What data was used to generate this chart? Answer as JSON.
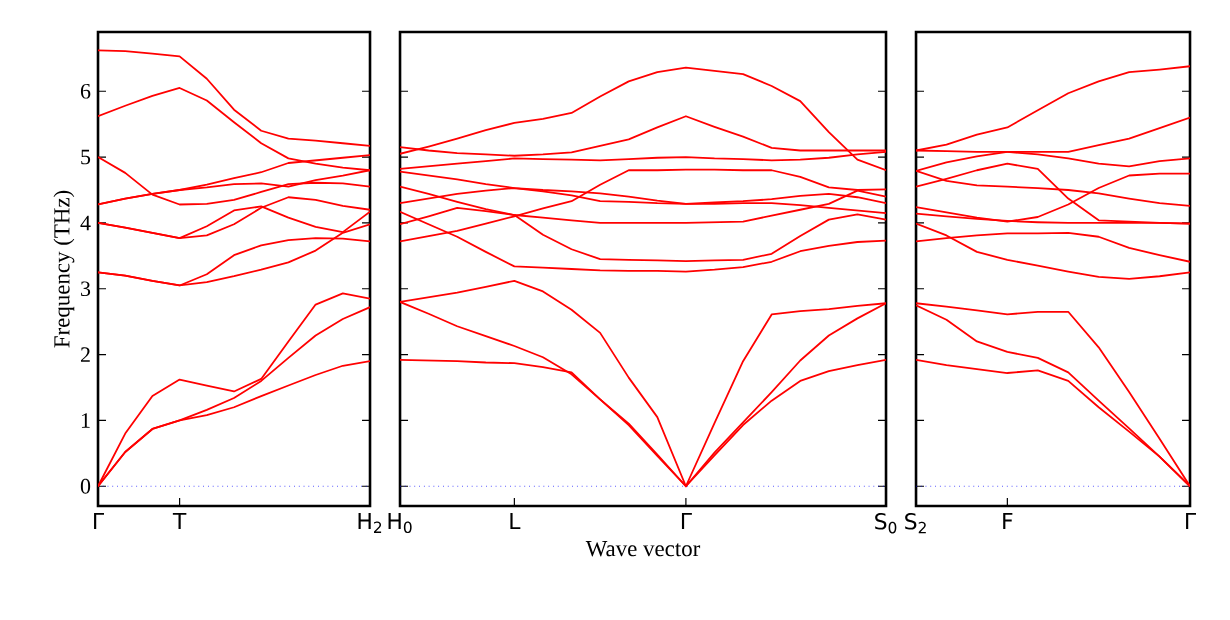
{
  "chart_data": [
    {
      "type": "line",
      "ylabel": "Frequency (THz)",
      "ylim": [
        -0.3,
        6.9
      ],
      "yticks": [
        0,
        1,
        2,
        3,
        4,
        5,
        6
      ],
      "categories": [
        "Γ",
        null,
        null,
        "T",
        null,
        null,
        null,
        null,
        null,
        null,
        "H$_{2}$"
      ],
      "ref_lines": [
        {
          "axis": "y",
          "value": 0,
          "color": "#0000ff",
          "line_style": "dotted"
        }
      ],
      "series": [
        {
          "color": "#ff0000",
          "values": [
            0,
            0.52,
            0.87,
            1.0,
            1.08,
            1.2,
            1.37,
            1.53,
            1.69,
            1.83,
            1.9
          ]
        },
        {
          "color": "#ff0000",
          "values": [
            0,
            0.52,
            0.87,
            1.0,
            1.16,
            1.34,
            1.6,
            1.95,
            2.29,
            2.54,
            2.72
          ]
        },
        {
          "color": "#ff0000",
          "values": [
            0,
            0.8,
            1.37,
            1.62,
            1.53,
            1.44,
            1.63,
            2.2,
            2.76,
            2.93,
            2.85
          ]
        },
        {
          "color": "#ff0000",
          "values": [
            3.25,
            3.2,
            3.12,
            3.05,
            3.1,
            3.19,
            3.29,
            3.4,
            3.58,
            3.85,
            3.98
          ]
        },
        {
          "color": "#ff0000",
          "values": [
            3.25,
            3.2,
            3.12,
            3.05,
            3.22,
            3.51,
            3.66,
            3.74,
            3.77,
            3.76,
            3.72
          ]
        },
        {
          "color": "#ff0000",
          "values": [
            4.0,
            3.93,
            3.85,
            3.77,
            3.95,
            4.19,
            4.25,
            4.08,
            3.94,
            3.86,
            4.17
          ]
        },
        {
          "color": "#ff0000",
          "values": [
            4.0,
            3.93,
            3.85,
            3.77,
            3.81,
            3.98,
            4.23,
            4.39,
            4.35,
            4.26,
            4.2
          ]
        },
        {
          "color": "#ff0000",
          "values": [
            4.28,
            4.37,
            4.44,
            4.5,
            4.54,
            4.59,
            4.6,
            4.55,
            4.65,
            4.72,
            4.8
          ]
        },
        {
          "color": "#ff0000",
          "values": [
            4.28,
            4.37,
            4.44,
            4.5,
            4.58,
            4.68,
            4.77,
            4.91,
            4.95,
            4.99,
            5.03
          ]
        },
        {
          "color": "#ff0000",
          "values": [
            5.0,
            4.76,
            4.43,
            4.28,
            4.29,
            4.35,
            4.47,
            4.59,
            4.61,
            4.6,
            4.55
          ]
        },
        {
          "color": "#ff0000",
          "values": [
            5.62,
            5.78,
            5.93,
            6.05,
            5.86,
            5.53,
            5.21,
            4.98,
            4.9,
            4.84,
            4.8
          ]
        },
        {
          "color": "#ff0000",
          "values": [
            6.62,
            6.61,
            6.57,
            6.53,
            6.19,
            5.72,
            5.4,
            5.28,
            5.25,
            5.21,
            5.17
          ]
        }
      ]
    },
    {
      "type": "line",
      "xlabel": "Wave vector",
      "ylim": [
        -0.3,
        6.9
      ],
      "yticks": [
        0,
        1,
        2,
        3,
        4,
        5,
        6
      ],
      "tick_labels": "x",
      "categories": [
        "H$_{0}$",
        null,
        null,
        null,
        "L",
        null,
        null,
        null,
        null,
        null,
        "Γ",
        null,
        null,
        null,
        null,
        null,
        null,
        "S$_{0}$"
      ],
      "ref_lines": [
        {
          "axis": "y",
          "value": 0,
          "color": "#0000ff",
          "line_style": "dotted"
        }
      ],
      "series": [
        {
          "color": "#ff0000",
          "values": [
            1.92,
            1.91,
            1.9,
            1.88,
            1.87,
            1.81,
            1.73,
            1.32,
            0.93,
            0.46,
            0,
            0.47,
            0.93,
            1.3,
            1.6,
            1.75,
            1.84,
            1.92
          ]
        },
        {
          "color": "#ff0000",
          "values": [
            2.8,
            2.62,
            2.43,
            2.28,
            2.13,
            1.96,
            1.7,
            1.32,
            0.95,
            0.48,
            0,
            0.51,
            0.97,
            1.43,
            1.91,
            2.29,
            2.55,
            2.78
          ]
        },
        {
          "color": "#ff0000",
          "values": [
            2.8,
            2.87,
            2.94,
            3.03,
            3.12,
            2.96,
            2.68,
            2.33,
            1.65,
            1.05,
            0,
            0.96,
            1.9,
            2.61,
            2.66,
            2.69,
            2.74,
            2.78
          ]
        },
        {
          "color": "#ff0000",
          "values": [
            4.17,
            3.98,
            3.79,
            3.56,
            3.34,
            3.32,
            3.3,
            3.28,
            3.27,
            3.27,
            3.26,
            3.29,
            3.33,
            3.41,
            3.57,
            3.65,
            3.71,
            3.73
          ]
        },
        {
          "color": "#ff0000",
          "values": [
            3.72,
            3.8,
            3.88,
            3.99,
            4.1,
            4.22,
            4.33,
            4.58,
            4.8,
            4.8,
            4.81,
            4.81,
            4.8,
            4.8,
            4.7,
            4.54,
            4.5,
            4.51
          ]
        },
        {
          "color": "#ff0000",
          "values": [
            4.3,
            4.37,
            4.44,
            4.49,
            4.53,
            4.48,
            4.42,
            4.33,
            4.32,
            4.3,
            4.29,
            4.29,
            4.3,
            4.3,
            4.27,
            4.23,
            4.19,
            4.15
          ]
        },
        {
          "color": "#ff0000",
          "values": [
            3.98,
            4.1,
            4.23,
            4.18,
            4.12,
            4.08,
            4.04,
            4.0,
            4.0,
            4.0,
            4.0,
            4.01,
            4.02,
            4.11,
            4.2,
            4.29,
            4.49,
            4.4
          ]
        },
        {
          "color": "#ff0000",
          "values": [
            4.55,
            4.44,
            4.32,
            4.21,
            4.12,
            3.82,
            3.6,
            3.45,
            3.44,
            3.43,
            3.42,
            3.43,
            3.44,
            3.53,
            3.8,
            4.05,
            4.13,
            4.05
          ]
        },
        {
          "color": "#ff0000",
          "values": [
            4.78,
            4.72,
            4.66,
            4.59,
            4.53,
            4.5,
            4.48,
            4.45,
            4.4,
            4.34,
            4.29,
            4.31,
            4.33,
            4.36,
            4.41,
            4.44,
            4.39,
            4.3
          ]
        },
        {
          "color": "#ff0000",
          "values": [
            4.82,
            4.86,
            4.9,
            4.94,
            4.98,
            4.97,
            4.96,
            4.95,
            4.97,
            4.99,
            5.0,
            4.98,
            4.97,
            4.95,
            4.96,
            4.99,
            5.04,
            5.08
          ]
        },
        {
          "color": "#ff0000",
          "values": [
            5.15,
            5.1,
            5.06,
            5.04,
            5.02,
            5.04,
            5.07,
            5.17,
            5.27,
            5.45,
            5.62,
            5.46,
            5.31,
            5.14,
            5.1,
            5.1,
            5.1,
            5.1
          ]
        },
        {
          "color": "#ff0000",
          "values": [
            5.05,
            5.16,
            5.28,
            5.41,
            5.52,
            5.58,
            5.67,
            5.92,
            6.15,
            6.29,
            6.36,
            6.31,
            6.26,
            6.08,
            5.85,
            5.38,
            4.96,
            4.8
          ]
        }
      ]
    },
    {
      "type": "line",
      "ylim": [
        -0.3,
        6.9
      ],
      "yticks": [
        0,
        1,
        2,
        3,
        4,
        5,
        6
      ],
      "tick_labels": "x",
      "categories": [
        "S$_{2}$",
        null,
        null,
        "F",
        null,
        null,
        null,
        null,
        null,
        "Γ"
      ],
      "ref_lines": [
        {
          "axis": "y",
          "value": 0,
          "color": "#0000ff",
          "line_style": "dotted"
        }
      ],
      "series": [
        {
          "color": "#ff0000",
          "values": [
            1.92,
            1.84,
            1.78,
            1.72,
            1.76,
            1.6,
            1.2,
            0.83,
            0.45,
            0
          ]
        },
        {
          "color": "#ff0000",
          "values": [
            2.75,
            2.53,
            2.2,
            2.04,
            1.95,
            1.73,
            1.3,
            0.88,
            0.45,
            0
          ]
        },
        {
          "color": "#ff0000",
          "values": [
            2.78,
            2.73,
            2.67,
            2.61,
            2.65,
            2.65,
            2.11,
            1.43,
            0.72,
            0
          ]
        },
        {
          "color": "#ff0000",
          "values": [
            3.72,
            3.77,
            3.81,
            3.84,
            3.84,
            3.85,
            3.79,
            3.62,
            3.51,
            3.41
          ]
        },
        {
          "color": "#ff0000",
          "values": [
            3.99,
            3.81,
            3.56,
            3.44,
            3.35,
            3.26,
            3.18,
            3.15,
            3.19,
            3.25
          ]
        },
        {
          "color": "#ff0000",
          "values": [
            4.24,
            4.16,
            4.08,
            4.02,
            4.09,
            4.28,
            4.53,
            4.72,
            4.75,
            4.75
          ]
        },
        {
          "color": "#ff0000",
          "values": [
            4.14,
            4.1,
            4.06,
            4.03,
            4.01,
            4.0,
            4.0,
            4.0,
            4.0,
            3.99
          ]
        },
        {
          "color": "#ff0000",
          "values": [
            4.55,
            4.67,
            4.8,
            4.9,
            4.82,
            4.37,
            4.04,
            4.02,
            4.0,
            3.99
          ]
        },
        {
          "color": "#ff0000",
          "values": [
            4.79,
            4.64,
            4.57,
            4.55,
            4.53,
            4.5,
            4.45,
            4.37,
            4.3,
            4.26
          ]
        },
        {
          "color": "#ff0000",
          "values": [
            5.1,
            5.09,
            5.08,
            5.08,
            5.04,
            4.98,
            4.9,
            4.86,
            4.94,
            4.98
          ]
        },
        {
          "color": "#ff0000",
          "values": [
            4.79,
            4.92,
            5.01,
            5.08,
            5.08,
            5.08,
            5.18,
            5.28,
            5.44,
            5.6
          ]
        },
        {
          "color": "#ff0000",
          "values": [
            5.1,
            5.19,
            5.34,
            5.45,
            5.71,
            5.97,
            6.15,
            6.29,
            6.33,
            6.38
          ]
        }
      ]
    }
  ]
}
